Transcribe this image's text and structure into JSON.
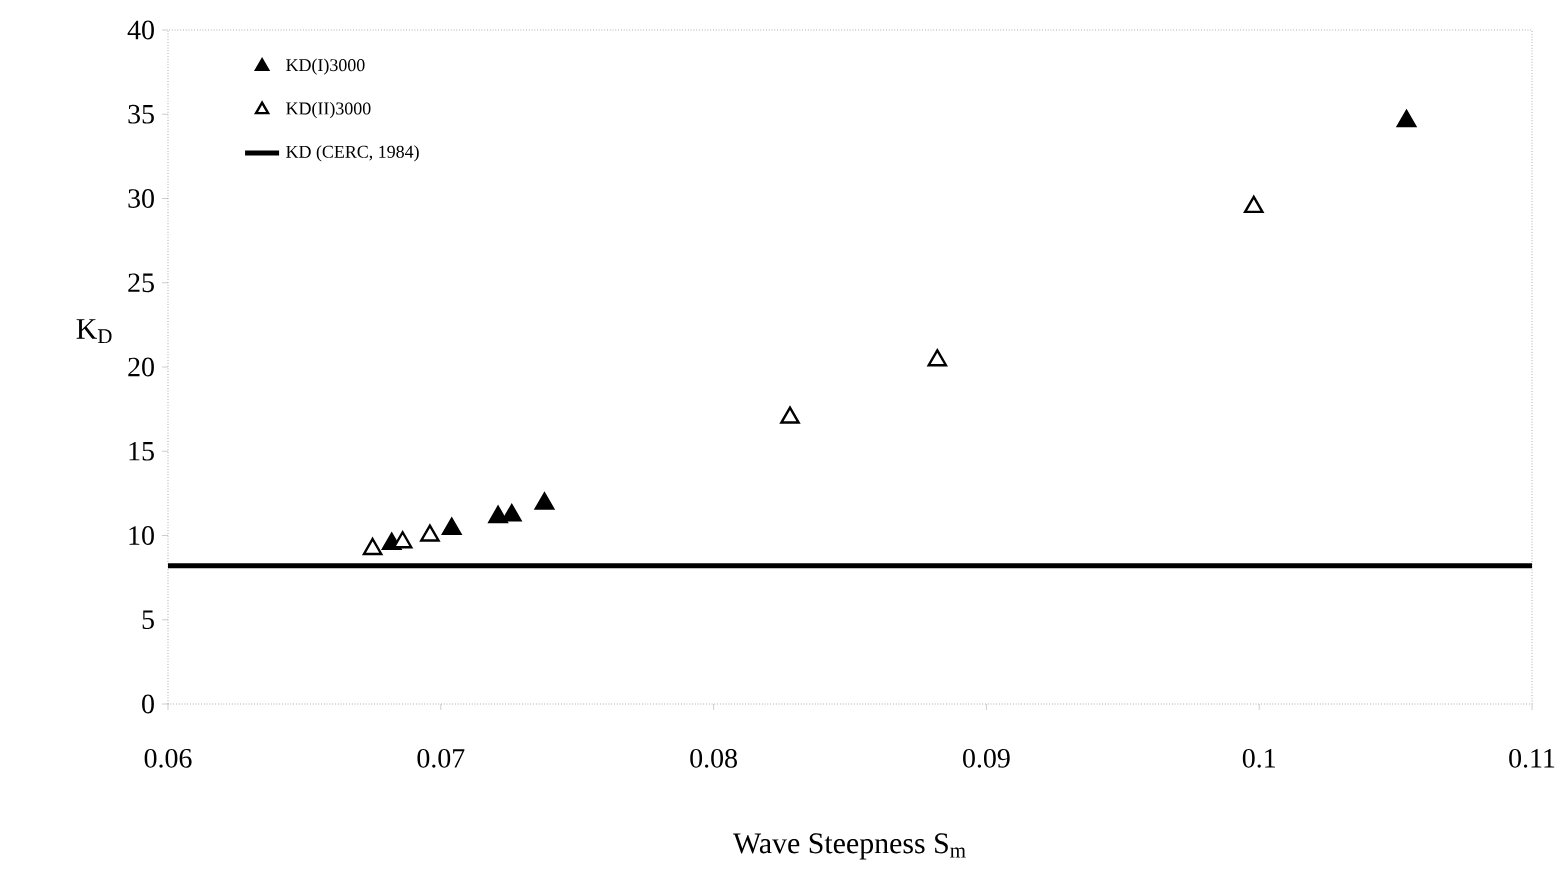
{
  "chart_data": {
    "type": "scatter",
    "xlabel": "Wave Steepness S$_{m}$",
    "ylabel": "K$_{D}$",
    "xlim": [
      0.06,
      0.11
    ],
    "xticks": [
      0.06,
      0.07,
      0.08,
      0.09,
      0.1,
      0.11
    ],
    "ylim": [
      0,
      40
    ],
    "yticks": [
      0,
      5,
      10,
      15,
      20,
      25,
      30,
      35,
      40
    ],
    "marker": "triangle",
    "legend": "top left",
    "series": [
      {
        "name": "KD(I)3000",
        "color": "#000000",
        "x": [
          0.0682,
          0.0704,
          0.0721,
          0.0726,
          0.0738,
          0.1054
        ],
        "values": [
          9.5,
          10.4,
          11.1,
          11.2,
          11.9,
          34.6
        ]
      },
      {
        "name": "KD(II)3000",
        "color": "#000000",
        "x": [
          0.0675,
          0.0686,
          0.0696,
          0.0828,
          0.0882,
          0.0998
        ],
        "values": [
          9.2,
          9.6,
          10.0,
          17.0,
          20.4,
          29.5
        ]
      }
    ],
    "ref_lines": [
      {
        "axis": "y",
        "value": 8.2,
        "label": "KD (CERC, 1984)",
        "color": "#000000"
      }
    ]
  }
}
